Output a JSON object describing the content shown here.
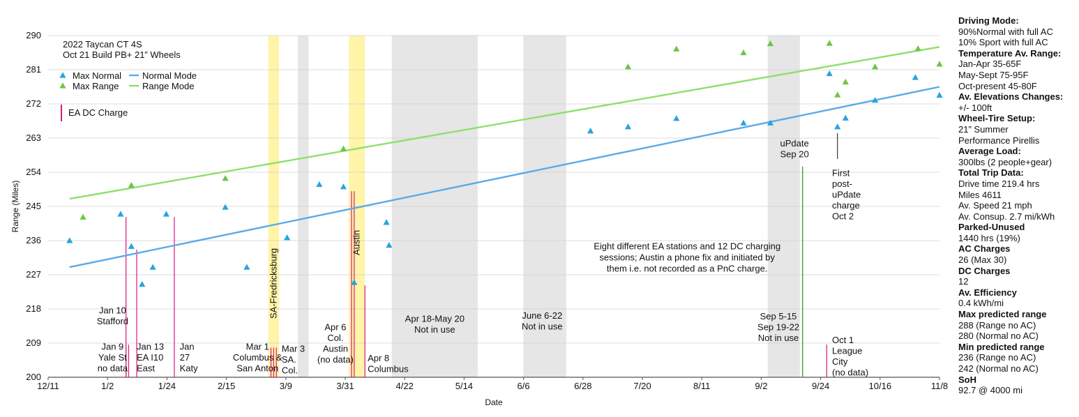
{
  "chart_data": {
    "type": "scatter",
    "title_lines": [
      "2022 Taycan CT 4S",
      "Oct 21 Build PB+ 21” Wheels"
    ],
    "xlabel": "Date",
    "ylabel": "Range (Miles)",
    "ylim": [
      200,
      290
    ],
    "yticks": [
      200,
      209,
      218,
      227,
      236,
      245,
      254,
      263,
      272,
      281,
      290
    ],
    "xlim": [
      "2021-12-11",
      "2022-11-08"
    ],
    "xtick_labels": [
      "12/11",
      "1/2",
      "1/24",
      "2/15",
      "3/9",
      "3/31",
      "4/22",
      "5/14",
      "6/6",
      "6/28",
      "7/20",
      "8/11",
      "9/2",
      "9/24",
      "10/16",
      "11/8"
    ],
    "grid": true,
    "legend": {
      "placement": "top-left",
      "items": [
        {
          "label": "Max Normal",
          "kind": "triangle",
          "color": "#29a3e0"
        },
        {
          "label": "Normal Mode",
          "kind": "line",
          "color": "#5aaae8"
        },
        {
          "label": "Max Range",
          "kind": "triangle",
          "color": "#6cc644"
        },
        {
          "label": "Range Mode",
          "kind": "line",
          "color": "#8ee06a"
        },
        {
          "label": "EA DC Charge",
          "kind": "bar",
          "color": "#d9177e"
        }
      ]
    },
    "series": [
      {
        "name": "Max Normal",
        "color": "#29a3e0",
        "points": [
          [
            "2021-12-19",
            236.0
          ],
          [
            "2022-01-07",
            243.0
          ],
          [
            "2022-01-11",
            234.5
          ],
          [
            "2022-01-15",
            224.5
          ],
          [
            "2022-01-19",
            229.0
          ],
          [
            "2022-01-24",
            243.0
          ],
          [
            "2022-02-15",
            244.8
          ],
          [
            "2022-02-23",
            229.0
          ],
          [
            "2022-03-10",
            236.8
          ],
          [
            "2022-03-22",
            250.8
          ],
          [
            "2022-03-31",
            250.2
          ],
          [
            "2022-04-04",
            225.0
          ],
          [
            "2022-04-16",
            240.8
          ],
          [
            "2022-04-17",
            234.8
          ],
          [
            "2022-07-01",
            264.9
          ],
          [
            "2022-07-15",
            266.0
          ],
          [
            "2022-08-02",
            268.2
          ],
          [
            "2022-08-27",
            267.0
          ],
          [
            "2022-09-06",
            267.0
          ],
          [
            "2022-09-28",
            280.0
          ],
          [
            "2022-10-01",
            266.0
          ],
          [
            "2022-10-04",
            268.3
          ],
          [
            "2022-10-15",
            273.0
          ],
          [
            "2022-10-30",
            279.0
          ],
          [
            "2022-11-08",
            274.3
          ]
        ]
      },
      {
        "name": "Max Range",
        "color": "#6cc644",
        "points": [
          [
            "2021-12-24",
            242.2
          ],
          [
            "2022-01-11",
            250.6
          ],
          [
            "2022-02-15",
            252.4
          ],
          [
            "2022-03-31",
            260.2
          ],
          [
            "2022-07-15",
            281.8
          ],
          [
            "2022-08-02",
            286.5
          ],
          [
            "2022-08-27",
            285.5
          ],
          [
            "2022-09-06",
            287.9
          ],
          [
            "2022-09-28",
            288.0
          ],
          [
            "2022-10-01",
            274.4
          ],
          [
            "2022-10-04",
            277.8
          ],
          [
            "2022-10-15",
            281.8
          ],
          [
            "2022-10-31",
            286.6
          ],
          [
            "2022-11-08",
            282.5
          ]
        ]
      }
    ],
    "trend_lines": [
      {
        "name": "Normal Mode",
        "color": "#5aaae8",
        "from": [
          "2021-12-19",
          229.0
        ],
        "to": [
          "2022-11-08",
          276.5
        ]
      },
      {
        "name": "Range Mode",
        "color": "#8ee06a",
        "from": [
          "2021-12-19",
          247.0
        ],
        "to": [
          "2022-11-08",
          287.0
        ]
      }
    ],
    "bands": [
      {
        "color": "#fff4a8",
        "from": "2022-03-03",
        "to": "2022-03-07",
        "label": "SA-Fredricksburg"
      },
      {
        "color": "#e6e6e6",
        "from": "2022-03-14",
        "to": "2022-03-18",
        "label": ""
      },
      {
        "color": "#fff4a8",
        "from": "2022-04-02",
        "to": "2022-04-08",
        "label": "Austin"
      },
      {
        "color": "#e6e6e6",
        "from": "2022-04-18",
        "to": "2022-05-20",
        "label": ""
      },
      {
        "color": "#e6e6e6",
        "from": "2022-06-06",
        "to": "2022-06-22",
        "label": ""
      },
      {
        "color": "#e6e6e6",
        "from": "2022-09-05",
        "to": "2022-09-17",
        "label": ""
      }
    ],
    "ea_dc_charges": [
      {
        "date": "2022-01-09",
        "value": 208.6
      },
      {
        "date": "2022-01-10",
        "value": 208.6
      },
      {
        "date": "2022-01-09",
        "value": 242.2
      },
      {
        "date": "2022-01-13",
        "value": 233.6
      },
      {
        "date": "2022-01-27",
        "value": 242.2
      },
      {
        "date": "2022-03-04",
        "value": 207.8
      },
      {
        "date": "2022-03-05",
        "value": 207.8
      },
      {
        "date": "2022-03-06",
        "value": 207.8
      },
      {
        "date": "2022-04-03",
        "value": 249.0
      },
      {
        "date": "2022-04-04",
        "value": 249.0
      },
      {
        "date": "2022-04-08",
        "value": 224.2
      },
      {
        "date": "2022-09-27",
        "value": 208.6
      }
    ],
    "update_line": {
      "date": "2022-09-18",
      "value": 255.5,
      "color": "#3aa63a"
    },
    "annotations": [
      {
        "lines": [
          "Jan 10",
          "Stafford"
        ],
        "date": "2022-01-04",
        "value": 216.8,
        "align": "middle"
      },
      {
        "lines": [
          "Jan 9",
          "Yale St",
          "no data"
        ],
        "date": "2022-01-04",
        "value": 207.3,
        "align": "middle"
      },
      {
        "lines": [
          "Jan 13",
          "EA  I10",
          "East"
        ],
        "date": "2022-01-13",
        "value": 207.3,
        "align": "start"
      },
      {
        "lines": [
          "Jan",
          "27",
          "Katy"
        ],
        "date": "2022-01-29",
        "value": 207.3,
        "align": "start"
      },
      {
        "lines": [
          "Mar 1",
          "Columbus &",
          "San Anton"
        ],
        "date": "2022-02-27",
        "value": 207.3,
        "align": "middle"
      },
      {
        "lines": [
          "Mar 3",
          "SA.",
          "Col."
        ],
        "date": "2022-03-08",
        "value": 206.7,
        "align": "start"
      },
      {
        "lines": [
          "Apr 6",
          "Col.",
          "Austin",
          "(no data)"
        ],
        "date": "2022-03-28",
        "value": 212.4,
        "align": "middle"
      },
      {
        "lines": [
          "Apr 8",
          "Columbus"
        ],
        "date": "2022-04-09",
        "value": 204.2,
        "align": "start"
      },
      {
        "lines": [
          "Apr 18-May 20",
          "Not in use"
        ],
        "date": "2022-05-04",
        "value": 214.6,
        "align": "middle"
      },
      {
        "lines": [
          "June 6-22",
          "Not in use"
        ],
        "date": "2022-06-13",
        "value": 215.4,
        "align": "middle"
      },
      {
        "lines": [
          "Sep 5-15",
          "Sep 19-22",
          "Not in use"
        ],
        "date": "2022-09-09",
        "value": 215.2,
        "align": "middle"
      },
      {
        "lines": [
          "uPdate",
          "Sep 20"
        ],
        "date": "2022-09-15",
        "value": 260.8,
        "align": "middle"
      },
      {
        "lines": [
          "First",
          "post-",
          "uPdate",
          "charge",
          "Oct 2"
        ],
        "date": "2022-09-29",
        "value": 253.0,
        "align": "start"
      },
      {
        "lines": [
          "Oct 1",
          "League",
          "City",
          "(no data)"
        ],
        "date": "2022-09-29",
        "value": 209.0,
        "align": "start"
      },
      {
        "lines": [
          "Eight different EA stations and 12 DC charging",
          "sessions;  Austin a phone fix and initiated by",
          "them i.e. not recorded as a PnC charge."
        ],
        "date": "2022-08-06",
        "value": 233.7,
        "align": "middle"
      }
    ],
    "pointers": [
      {
        "date": "2022-10-01",
        "from_value": 264.3,
        "to_value": 257.5
      }
    ]
  },
  "side_panel": [
    {
      "text": "Driving Mode:",
      "style": "heading"
    },
    {
      "text": "90%Normal with full AC",
      "style": "normal"
    },
    {
      "text": "10% Sport with full AC",
      "style": "normal"
    },
    {
      "text": "Temperature Av. Range:",
      "style": "heading"
    },
    {
      "text": "Jan-Apr 35-65F",
      "style": "normal"
    },
    {
      "text": "May-Sept 75-95F",
      "style": "normal"
    },
    {
      "text": "Oct-present 45-80F",
      "style": "normal"
    },
    {
      "text": "Av. Elevations Changes:",
      "style": "heading"
    },
    {
      "text": "+/- 100ft",
      "style": "normal"
    },
    {
      "text": "Wheel-Tire Setup:",
      "style": "heading"
    },
    {
      "text": "21” Summer",
      "style": "normal"
    },
    {
      "text": "Performance Pirellis",
      "style": "normal"
    },
    {
      "text": "Average Load:",
      "style": "heading"
    },
    {
      "text": "300lbs (2 people+gear)",
      "style": "normal"
    },
    {
      "text": "Total Trip Data:",
      "style": "heading"
    },
    {
      "text": "Drive time 219.4 hrs",
      "style": "normal"
    },
    {
      "text": "Miles 4611",
      "style": "normal"
    },
    {
      "text": "Av. Speed 21 mph",
      "style": "normal"
    },
    {
      "text": "Av. Consup. 2.7 mi/kWh",
      "style": "normal"
    },
    {
      "text": "Parked-Unused",
      "style": "heading"
    },
    {
      "text": "1440 hrs (19%)",
      "style": "normal"
    },
    {
      "text": "AC Charges",
      "style": "heading"
    },
    {
      "text": "26 (Max 30)",
      "style": "normal"
    },
    {
      "text": "DC Charges",
      "style": "heading"
    },
    {
      "text": "12",
      "style": "normal"
    },
    {
      "text": "Av. Efficiency",
      "style": "heading"
    },
    {
      "text": "0.4 kWh/mi",
      "style": "normal"
    },
    {
      "text": "Max predicted range",
      "style": "heading"
    },
    {
      "text": "288 (Range no AC)",
      "style": "normal"
    },
    {
      "text": "280 (Normal no AC)",
      "style": "normal"
    },
    {
      "text": "Min predicted range",
      "style": "heading"
    },
    {
      "text": "236 (Range no AC)",
      "style": "normal"
    },
    {
      "text": "242 (Normal no AC)",
      "style": "normal"
    },
    {
      "text": "SoH",
      "style": "heading"
    },
    {
      "text": "92.7 @ 4000 mi",
      "style": "normal"
    }
  ]
}
